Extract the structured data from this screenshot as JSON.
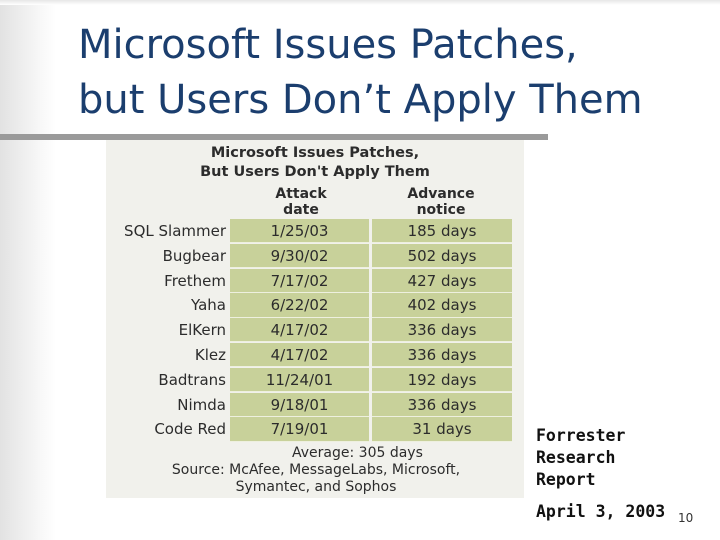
{
  "slide": {
    "title_line1": "Microsoft Issues Patches,",
    "title_line2": "but Users Don’t Apply Them",
    "page_number": "10"
  },
  "figure": {
    "title_line1": "Microsoft Issues Patches,",
    "title_line2": "But Users Don't Apply Them",
    "col_attack_line1": "Attack",
    "col_attack_line2": "date",
    "col_notice_line1": "Advance",
    "col_notice_line2": "notice",
    "rows": [
      {
        "name": "SQL Slammer",
        "date": "1/25/03",
        "notice": "185 days"
      },
      {
        "name": "Bugbear",
        "date": "9/30/02",
        "notice": "502 days"
      },
      {
        "name": "Frethem",
        "date": "7/17/02",
        "notice": "427 days"
      },
      {
        "name": "Yaha",
        "date": "6/22/02",
        "notice": "402 days"
      },
      {
        "name": "ElKern",
        "date": "4/17/02",
        "notice": "336 days"
      },
      {
        "name": "Klez",
        "date": "4/17/02",
        "notice": "336 days"
      },
      {
        "name": "Badtrans",
        "date": "11/24/01",
        "notice": "192 days"
      },
      {
        "name": "Nimda",
        "date": "9/18/01",
        "notice": "336 days"
      },
      {
        "name": "Code Red",
        "date": "7/19/01",
        "notice": "31 days"
      }
    ],
    "average": "Average: 305 days",
    "source_line1": "Source: McAfee, MessageLabs, Microsoft,",
    "source_line2": "Symantec, and Sophos"
  },
  "note": {
    "line1": "Forrester",
    "line2": "Research",
    "line3": "Report",
    "date": "April 3, 2003"
  },
  "colors": {
    "title": "#1b3e6e",
    "cell_fill": "#c8d19a",
    "rule": "#9a9a9a"
  }
}
